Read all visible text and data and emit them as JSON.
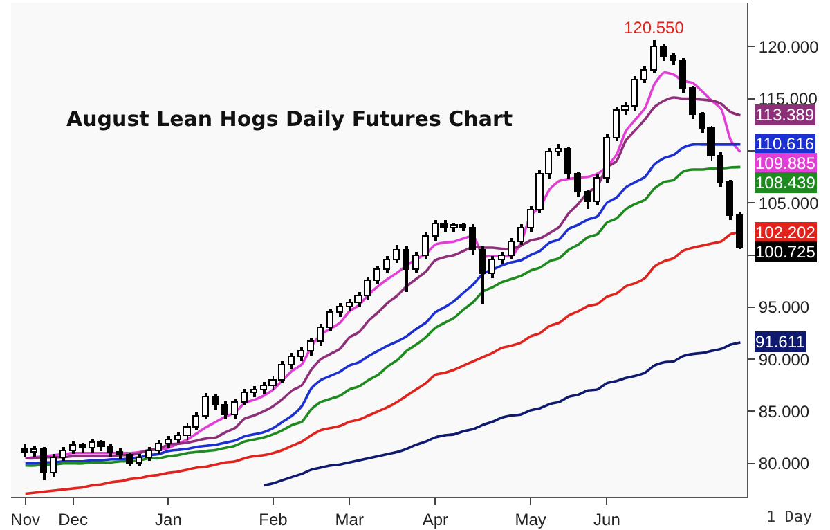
{
  "chart_data": {
    "type": "candlestick",
    "title": "August Lean Hogs Daily Futures Chart",
    "categories": [
      "Nov",
      null,
      null,
      null,
      null,
      "Dec",
      null,
      null,
      null,
      null,
      null,
      null,
      null,
      null,
      null,
      "Jan",
      null,
      null,
      null,
      null,
      null,
      null,
      null,
      null,
      null,
      null,
      "Feb",
      null,
      null,
      null,
      null,
      null,
      null,
      null,
      "Mar",
      null,
      null,
      null,
      null,
      null,
      null,
      null,
      null,
      "Apr",
      null,
      null,
      null,
      null,
      null,
      null,
      null,
      null,
      null,
      "May",
      null,
      null,
      null,
      null,
      null,
      null,
      null,
      "Jun",
      null,
      null,
      null,
      null,
      null,
      null,
      null,
      null,
      null,
      null,
      null,
      null,
      null,
      null
    ],
    "ohlc": [
      [
        81.3,
        81.8,
        80.6,
        81.0
      ],
      [
        81.0,
        81.7,
        80.6,
        81.3
      ],
      [
        81.3,
        81.6,
        78.4,
        79.0
      ],
      [
        79.0,
        80.9,
        78.7,
        80.5
      ],
      [
        80.5,
        81.6,
        80.2,
        81.2
      ],
      [
        81.2,
        82.1,
        80.9,
        81.7
      ],
      [
        81.7,
        82.0,
        81.0,
        81.4
      ],
      [
        81.4,
        82.4,
        81.1,
        82.0
      ],
      [
        82.0,
        82.3,
        81.2,
        81.6
      ],
      [
        81.6,
        81.9,
        80.6,
        81.0
      ],
      [
        81.0,
        81.4,
        80.4,
        80.8
      ],
      [
        80.8,
        81.1,
        79.7,
        80.0
      ],
      [
        80.0,
        80.9,
        79.7,
        80.5
      ],
      [
        80.5,
        81.6,
        80.2,
        81.2
      ],
      [
        81.2,
        82.2,
        80.9,
        81.8
      ],
      [
        81.8,
        82.7,
        81.5,
        82.3
      ],
      [
        82.3,
        83.0,
        82.0,
        82.6
      ],
      [
        82.6,
        83.9,
        82.3,
        83.5
      ],
      [
        83.5,
        84.9,
        83.2,
        84.5
      ],
      [
        84.5,
        86.7,
        84.2,
        86.3
      ],
      [
        86.3,
        86.6,
        85.2,
        85.6
      ],
      [
        85.6,
        85.9,
        84.2,
        84.6
      ],
      [
        84.6,
        86.2,
        84.3,
        85.8
      ],
      [
        85.8,
        87.2,
        85.5,
        86.8
      ],
      [
        86.8,
        87.4,
        86.4,
        87.0
      ],
      [
        87.0,
        87.8,
        86.6,
        87.4
      ],
      [
        87.4,
        88.4,
        87.0,
        88.0
      ],
      [
        88.0,
        89.8,
        87.7,
        89.4
      ],
      [
        89.4,
        90.6,
        89.0,
        90.2
      ],
      [
        90.2,
        91.2,
        89.8,
        90.8
      ],
      [
        90.8,
        92.1,
        90.4,
        91.7
      ],
      [
        91.7,
        93.4,
        91.3,
        93.0
      ],
      [
        93.0,
        94.9,
        92.7,
        94.5
      ],
      [
        94.5,
        95.4,
        94.1,
        95.0
      ],
      [
        95.0,
        95.8,
        94.6,
        95.4
      ],
      [
        95.4,
        96.4,
        95.0,
        96.0
      ],
      [
        96.0,
        97.9,
        95.7,
        97.5
      ],
      [
        97.5,
        99.0,
        97.2,
        98.6
      ],
      [
        98.6,
        99.9,
        98.3,
        99.5
      ],
      [
        99.5,
        100.9,
        99.2,
        100.5
      ],
      [
        100.5,
        100.8,
        96.5,
        98.6
      ],
      [
        98.6,
        100.3,
        98.3,
        99.9
      ],
      [
        99.9,
        102.1,
        99.6,
        101.7
      ],
      [
        101.7,
        103.4,
        101.4,
        103.0
      ],
      [
        103.0,
        103.3,
        102.1,
        102.5
      ],
      [
        102.5,
        103.1,
        102.2,
        102.8
      ],
      [
        102.8,
        103.1,
        102.3,
        102.6
      ],
      [
        102.6,
        103.0,
        100.1,
        100.5
      ],
      [
        100.5,
        100.8,
        95.3,
        98.2
      ],
      [
        98.2,
        99.9,
        97.8,
        99.5
      ],
      [
        99.5,
        100.3,
        99.1,
        99.9
      ],
      [
        99.9,
        101.6,
        99.6,
        101.2
      ],
      [
        101.2,
        102.9,
        100.9,
        102.5
      ],
      [
        102.5,
        104.7,
        102.2,
        104.3
      ],
      [
        104.3,
        108.1,
        104.0,
        107.7
      ],
      [
        107.7,
        110.3,
        107.4,
        109.9
      ],
      [
        109.9,
        110.6,
        109.4,
        110.1
      ],
      [
        110.1,
        110.4,
        107.3,
        107.7
      ],
      [
        107.7,
        108.0,
        105.6,
        106.0
      ],
      [
        106.0,
        106.3,
        104.4,
        105.1
      ],
      [
        105.1,
        107.7,
        104.8,
        107.3
      ],
      [
        107.3,
        111.6,
        107.0,
        111.2
      ],
      [
        111.2,
        114.2,
        110.9,
        113.8
      ],
      [
        113.8,
        114.6,
        113.4,
        114.2
      ],
      [
        114.2,
        117.2,
        113.9,
        116.8
      ],
      [
        116.8,
        118.1,
        116.5,
        117.7
      ],
      [
        117.7,
        120.55,
        117.4,
        119.9
      ],
      [
        119.9,
        120.2,
        118.6,
        119.0
      ],
      [
        119.0,
        119.4,
        118.2,
        118.6
      ],
      [
        118.6,
        118.9,
        115.6,
        116.0
      ],
      [
        116.0,
        116.3,
        113.0,
        113.4
      ],
      [
        113.4,
        113.7,
        111.7,
        112.1
      ],
      [
        112.1,
        112.4,
        109.1,
        109.5
      ],
      [
        109.5,
        109.8,
        106.5,
        106.9
      ],
      [
        106.9,
        107.2,
        103.4,
        103.8
      ],
      [
        103.8,
        104.1,
        100.6,
        100.725
      ]
    ],
    "color": "#000000",
    "value_labels": [
      null,
      null,
      null,
      null,
      null,
      null,
      null,
      null,
      null,
      null,
      null,
      null,
      null,
      null,
      null,
      null,
      null,
      null,
      null,
      null,
      null,
      null,
      null,
      null,
      null,
      null,
      null,
      null,
      null,
      null,
      null,
      null,
      null,
      null,
      null,
      null,
      null,
      null,
      null,
      null,
      null,
      null,
      null,
      null,
      null,
      null,
      null,
      null,
      null,
      null,
      null,
      null,
      null,
      null,
      null,
      null,
      null,
      null,
      null,
      null,
      null,
      null,
      null,
      null,
      null,
      null,
      null,
      null,
      null,
      null,
      null,
      null,
      null,
      null,
      null,
      "100.725"
    ],
    "series": [
      {
        "type": "line",
        "color": "#e23fd6",
        "values": [
          80.5,
          80.6,
          80.7,
          80.8,
          80.9,
          81.0,
          81.0,
          81.0,
          81.0,
          81.0,
          81.0,
          81.0,
          81.1,
          81.3,
          81.3,
          81.5,
          81.9,
          82.3,
          82.9,
          83.5,
          84.0,
          84.5,
          84.9,
          85.8,
          86.1,
          86.5,
          87.1,
          88.0,
          88.9,
          89.5,
          91.2,
          92.4,
          92.9,
          93.5,
          94.6,
          95.2,
          96.2,
          97.0,
          97.7,
          98.3,
          99.0,
          99.6,
          100.1,
          101.0,
          101.2,
          101.3,
          101.6,
          101.8,
          99.9,
          99.9,
          99.9,
          99.9,
          101.2,
          103.8,
          104.6,
          106.3,
          107.1,
          107.3,
          107.4,
          107.5,
          107.8,
          108.5,
          109.6,
          111.9,
          113.0,
          114.1,
          116.4,
          117.5,
          117.3,
          116.7,
          116.5,
          115.7,
          114.8,
          114.0,
          111.0,
          109.885
        ],
        "value_labels": [
          null,
          null,
          null,
          null,
          null,
          null,
          null,
          null,
          null,
          null,
          null,
          null,
          null,
          null,
          null,
          null,
          null,
          null,
          null,
          null,
          null,
          null,
          null,
          null,
          null,
          null,
          null,
          null,
          null,
          null,
          null,
          null,
          null,
          null,
          null,
          null,
          null,
          null,
          null,
          null,
          null,
          null,
          null,
          null,
          null,
          null,
          null,
          null,
          null,
          null,
          null,
          null,
          null,
          null,
          null,
          null,
          null,
          null,
          null,
          null,
          null,
          null,
          null,
          null,
          null,
          null,
          null,
          null,
          null,
          null,
          null,
          null,
          null,
          null,
          null,
          "109.885"
        ]
      },
      {
        "type": "line",
        "color": "#8e2f7a",
        "values": [
          80.5,
          80.5,
          80.6,
          80.6,
          80.6,
          80.7,
          80.7,
          80.7,
          80.7,
          80.7,
          80.8,
          80.8,
          81.0,
          81.3,
          81.4,
          81.8,
          81.9,
          82.0,
          82.2,
          82.4,
          82.5,
          83.0,
          83.4,
          84.3,
          84.6,
          85.0,
          85.5,
          86.2,
          87.0,
          87.5,
          89.0,
          90.0,
          90.5,
          91.0,
          92.1,
          92.6,
          93.7,
          94.5,
          95.4,
          96.1,
          97.0,
          97.7,
          98.4,
          99.5,
          99.8,
          100.0,
          100.4,
          100.8,
          100.7,
          100.7,
          100.6,
          100.6,
          100.9,
          101.4,
          101.6,
          102.1,
          102.7,
          104.0,
          104.9,
          106.0,
          106.6,
          108.4,
          109.0,
          111.0,
          112.0,
          113.0,
          114.2,
          114.8,
          115.1,
          115.0,
          115.0,
          114.9,
          114.8,
          114.5,
          113.7,
          113.389
        ],
        "value_labels": [
          null,
          null,
          null,
          null,
          null,
          null,
          null,
          null,
          null,
          null,
          null,
          null,
          null,
          null,
          null,
          null,
          null,
          null,
          null,
          null,
          null,
          null,
          null,
          null,
          null,
          null,
          null,
          null,
          null,
          null,
          null,
          null,
          null,
          null,
          null,
          null,
          null,
          null,
          null,
          null,
          null,
          null,
          null,
          null,
          null,
          null,
          null,
          null,
          null,
          null,
          null,
          null,
          null,
          null,
          null,
          null,
          null,
          null,
          null,
          null,
          null,
          null,
          null,
          null,
          null,
          null,
          null,
          null,
          null,
          null,
          null,
          null,
          null,
          null,
          null,
          "113.389"
        ]
      },
      {
        "type": "line",
        "color": "#1c2fd0",
        "values": [
          80.0,
          80.0,
          80.1,
          80.1,
          80.2,
          80.2,
          80.2,
          80.3,
          80.3,
          80.4,
          80.4,
          80.5,
          80.6,
          80.8,
          80.9,
          81.2,
          81.3,
          81.4,
          81.6,
          81.7,
          81.8,
          82.0,
          82.2,
          82.6,
          82.8,
          83.0,
          83.4,
          84.0,
          84.6,
          85.5,
          87.2,
          88.0,
          88.4,
          88.8,
          89.4,
          89.7,
          90.3,
          90.8,
          91.3,
          91.7,
          92.2,
          92.9,
          93.5,
          94.5,
          95.0,
          95.6,
          96.4,
          97.2,
          98.2,
          98.6,
          99.0,
          99.3,
          99.5,
          100.0,
          100.4,
          101.2,
          101.5,
          102.5,
          102.9,
          103.4,
          103.7,
          105.0,
          105.5,
          106.5,
          107.0,
          107.5,
          108.7,
          109.3,
          109.6,
          110.3,
          110.6,
          110.6,
          110.6,
          110.6,
          110.6,
          110.616
        ],
        "value_labels": [
          null,
          null,
          null,
          null,
          null,
          null,
          null,
          null,
          null,
          null,
          null,
          null,
          null,
          null,
          null,
          null,
          null,
          null,
          null,
          null,
          null,
          null,
          null,
          null,
          null,
          null,
          null,
          null,
          null,
          null,
          null,
          null,
          null,
          null,
          null,
          null,
          null,
          null,
          null,
          null,
          null,
          null,
          null,
          null,
          null,
          null,
          null,
          null,
          null,
          null,
          null,
          null,
          null,
          null,
          null,
          null,
          null,
          null,
          null,
          null,
          null,
          null,
          null,
          null,
          null,
          null,
          null,
          null,
          null,
          null,
          null,
          null,
          null,
          null,
          null,
          "110.616"
        ]
      },
      {
        "type": "line",
        "color": "#1f8a1f",
        "values": [
          79.8,
          79.8,
          79.9,
          79.9,
          80.0,
          80.0,
          80.0,
          80.1,
          80.1,
          80.1,
          80.2,
          80.2,
          80.3,
          80.5,
          80.5,
          80.7,
          80.8,
          81.0,
          81.1,
          81.2,
          81.3,
          81.5,
          81.7,
          82.1,
          82.3,
          82.5,
          82.8,
          83.2,
          83.7,
          84.0,
          85.2,
          85.9,
          86.2,
          86.5,
          87.1,
          87.4,
          88.0,
          88.5,
          89.3,
          89.9,
          90.8,
          91.4,
          92.1,
          93.0,
          93.5,
          94.0,
          94.8,
          95.5,
          96.5,
          96.9,
          97.4,
          97.7,
          98.0,
          98.5,
          98.8,
          99.4,
          99.7,
          100.5,
          101.0,
          101.7,
          102.0,
          103.1,
          103.5,
          104.4,
          104.9,
          105.3,
          106.4,
          107.0,
          107.2,
          108.0,
          108.2,
          108.2,
          108.3,
          108.3,
          108.4,
          108.439
        ],
        "value_labels": [
          null,
          null,
          null,
          null,
          null,
          null,
          null,
          null,
          null,
          null,
          null,
          null,
          null,
          null,
          null,
          null,
          null,
          null,
          null,
          null,
          null,
          null,
          null,
          null,
          null,
          null,
          null,
          null,
          null,
          null,
          null,
          null,
          null,
          null,
          null,
          null,
          null,
          null,
          null,
          null,
          null,
          null,
          null,
          null,
          null,
          null,
          null,
          null,
          null,
          null,
          null,
          null,
          null,
          null,
          null,
          null,
          null,
          null,
          null,
          null,
          null,
          null,
          null,
          null,
          null,
          null,
          null,
          null,
          null,
          null,
          null,
          null,
          null,
          null,
          null,
          "108.439"
        ]
      },
      {
        "type": "line",
        "color": "#e0231c",
        "values": [
          77.1,
          77.2,
          77.3,
          77.4,
          77.5,
          77.6,
          77.7,
          77.9,
          78.0,
          78.2,
          78.3,
          78.5,
          78.6,
          78.8,
          78.9,
          79.1,
          79.2,
          79.4,
          79.6,
          79.7,
          79.9,
          80.1,
          80.2,
          80.5,
          80.7,
          80.8,
          81.0,
          81.3,
          81.7,
          82.1,
          82.7,
          83.2,
          83.4,
          83.6,
          84.0,
          84.2,
          84.6,
          85.0,
          85.4,
          85.9,
          86.5,
          87.1,
          87.7,
          88.5,
          88.7,
          89.0,
          89.4,
          89.8,
          90.2,
          90.6,
          91.1,
          91.3,
          91.6,
          92.2,
          92.5,
          93.2,
          93.5,
          94.2,
          94.6,
          95.1,
          95.3,
          96.0,
          96.3,
          97.0,
          97.3,
          97.8,
          98.9,
          99.4,
          99.7,
          100.4,
          100.7,
          100.9,
          101.1,
          101.3,
          102.0,
          102.202
        ],
        "value_labels": [
          null,
          null,
          null,
          null,
          null,
          null,
          null,
          null,
          null,
          null,
          null,
          null,
          null,
          null,
          null,
          null,
          null,
          null,
          null,
          null,
          null,
          null,
          null,
          null,
          null,
          null,
          null,
          null,
          null,
          null,
          null,
          null,
          null,
          null,
          null,
          null,
          null,
          null,
          null,
          null,
          null,
          null,
          null,
          null,
          null,
          null,
          null,
          null,
          null,
          null,
          null,
          null,
          null,
          null,
          null,
          null,
          null,
          null,
          null,
          null,
          null,
          null,
          null,
          null,
          null,
          null,
          null,
          null,
          null,
          null,
          null,
          null,
          null,
          null,
          null,
          "102.202"
        ]
      },
      {
        "type": "line",
        "color": "#0f1a6e",
        "values": [
          null,
          null,
          null,
          null,
          null,
          null,
          null,
          null,
          null,
          null,
          null,
          null,
          null,
          null,
          null,
          null,
          null,
          null,
          null,
          null,
          null,
          null,
          null,
          null,
          null,
          77.9,
          78.1,
          78.4,
          78.7,
          79.0,
          79.4,
          79.6,
          79.8,
          79.9,
          80.1,
          80.3,
          80.5,
          80.7,
          80.9,
          81.1,
          81.4,
          81.8,
          82.1,
          82.5,
          82.7,
          82.8,
          83.1,
          83.3,
          83.7,
          84.0,
          84.4,
          84.6,
          84.7,
          85.1,
          85.3,
          85.7,
          85.9,
          86.4,
          86.6,
          87.0,
          87.1,
          87.7,
          87.9,
          88.2,
          88.4,
          88.7,
          89.4,
          89.7,
          89.8,
          90.3,
          90.5,
          90.6,
          90.8,
          91.0,
          91.4,
          91.611
        ],
        "value_labels": [
          null,
          null,
          null,
          null,
          null,
          null,
          null,
          null,
          null,
          null,
          null,
          null,
          null,
          null,
          null,
          null,
          null,
          null,
          null,
          null,
          null,
          null,
          null,
          null,
          null,
          null,
          null,
          null,
          null,
          null,
          null,
          null,
          null,
          null,
          null,
          null,
          null,
          null,
          null,
          null,
          null,
          null,
          null,
          null,
          null,
          null,
          null,
          null,
          null,
          null,
          null,
          null,
          null,
          null,
          null,
          null,
          null,
          null,
          null,
          null,
          null,
          null,
          null,
          null,
          null,
          null,
          null,
          null,
          null,
          null,
          null,
          null,
          null,
          null,
          null,
          "91.611"
        ]
      }
    ],
    "ylim": [
      76.8,
      124.2
    ],
    "yticks": [
      {
        "value": 80,
        "label": "80.000"
      },
      {
        "value": 85,
        "label": "85.000"
      },
      {
        "value": 90,
        "label": "90.000"
      },
      {
        "value": 95,
        "label": "95.000"
      },
      {
        "value": 100,
        "label": null
      },
      {
        "value": 105,
        "label": "105.000"
      },
      {
        "value": 110,
        "label": null
      },
      {
        "value": 115,
        "label": "115.000"
      },
      {
        "value": 120,
        "label": "120.000"
      }
    ],
    "annotations": [
      {
        "text": "120.550",
        "y": 120.55
      },
      "1 Day"
    ]
  }
}
